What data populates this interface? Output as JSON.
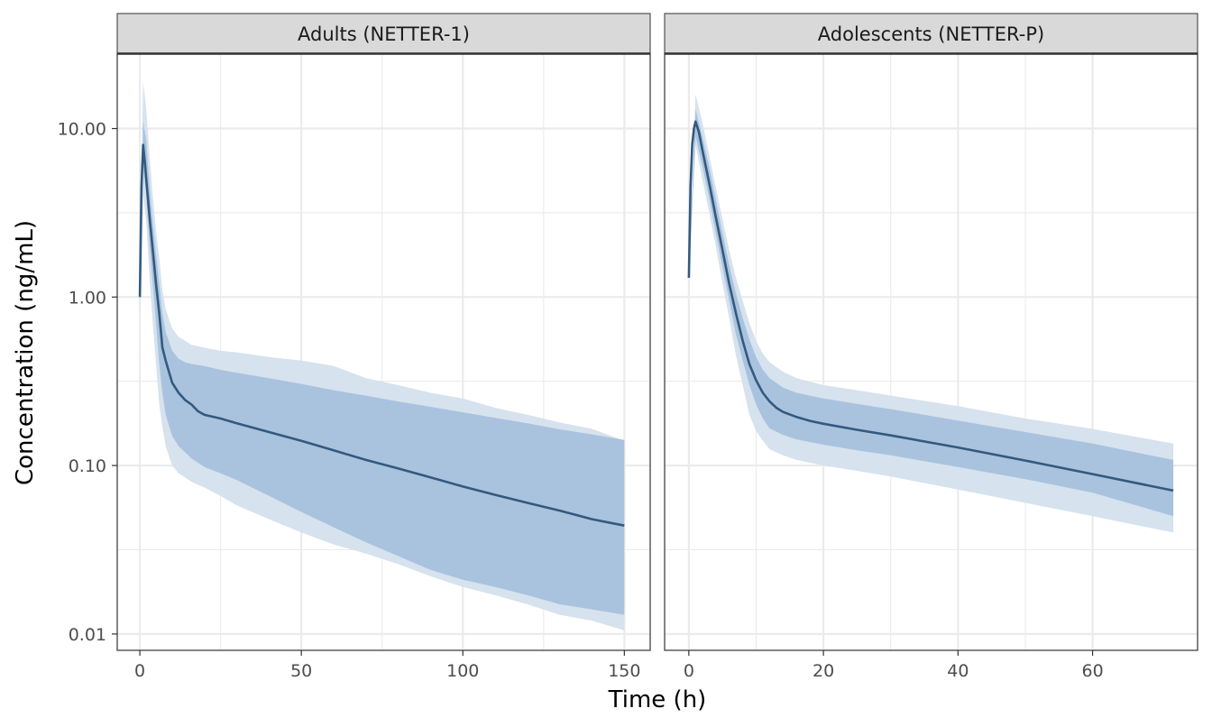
{
  "colors": {
    "line": "#34597f",
    "inner_band": "#a9c3de",
    "outer_band": "#d6e2ee",
    "strip_bg": "#d9d9d9",
    "grid": "#ebebeb",
    "panel_border": "#333333"
  },
  "chart_data": {
    "type": "line",
    "facet_layout": "1 row x 2 panels, shared y-axis",
    "xlabel": "Time (h)",
    "ylabel": "Concentration (ng/mL)",
    "y_scale": "log10",
    "ylim": [
      0.008,
      28
    ],
    "y_ticks": [
      0.01,
      0.1,
      1,
      10
    ],
    "y_tick_labels": [
      "0.01",
      "0.10",
      "1.00",
      "10.00"
    ],
    "grid": true,
    "legend": "none",
    "bands": [
      "50% interval (inner)",
      "90% interval (outer)"
    ],
    "panels": [
      {
        "strip_label": "Adults (NETTER-1)",
        "xlim": [
          -7,
          158
        ],
        "x_ticks": [
          0,
          50,
          100,
          150
        ],
        "x_tick_labels": [
          "0",
          "50",
          "100",
          "150"
        ],
        "median": {
          "x": [
            0,
            0.5,
            1,
            1.5,
            2,
            3,
            4,
            5,
            6,
            7,
            8,
            10,
            12,
            14,
            16,
            18,
            20,
            25,
            30,
            40,
            50,
            60,
            70,
            80,
            90,
            100,
            110,
            120,
            130,
            140,
            150
          ],
          "y": [
            1.0,
            4.5,
            8.0,
            6.5,
            5.0,
            3.0,
            1.9,
            1.2,
            0.8,
            0.5,
            0.42,
            0.31,
            0.27,
            0.245,
            0.23,
            0.21,
            0.2,
            0.19,
            0.178,
            0.158,
            0.14,
            0.123,
            0.108,
            0.096,
            0.085,
            0.075,
            0.067,
            0.06,
            0.054,
            0.048,
            0.044
          ]
        },
        "inner_band": {
          "x": [
            0,
            1,
            2,
            3,
            4,
            5,
            6,
            7,
            8,
            10,
            12,
            14,
            16,
            20,
            25,
            30,
            40,
            50,
            60,
            70,
            80,
            90,
            100,
            110,
            120,
            130,
            140,
            150
          ],
          "lower": [
            0.9,
            6.0,
            4.0,
            2.0,
            1.2,
            0.7,
            0.4,
            0.27,
            0.2,
            0.15,
            0.13,
            0.12,
            0.11,
            0.098,
            0.09,
            0.082,
            0.066,
            0.053,
            0.043,
            0.035,
            0.029,
            0.024,
            0.021,
            0.019,
            0.017,
            0.015,
            0.014,
            0.013
          ],
          "upper": [
            1.0,
            11.0,
            8.5,
            4.5,
            2.8,
            1.8,
            1.2,
            0.8,
            0.62,
            0.48,
            0.43,
            0.41,
            0.4,
            0.39,
            0.37,
            0.355,
            0.33,
            0.305,
            0.28,
            0.26,
            0.24,
            0.223,
            0.207,
            0.192,
            0.178,
            0.164,
            0.153,
            0.142
          ]
        },
        "outer_band": {
          "x": [
            0,
            1,
            2,
            3,
            4,
            5,
            6,
            7,
            8,
            10,
            12,
            14,
            16,
            20,
            25,
            30,
            40,
            50,
            60,
            70,
            80,
            90,
            100,
            110,
            120,
            130,
            140,
            150
          ],
          "lower": [
            0.8,
            4.0,
            2.8,
            1.3,
            0.7,
            0.4,
            0.23,
            0.17,
            0.13,
            0.1,
            0.09,
            0.085,
            0.08,
            0.074,
            0.066,
            0.058,
            0.048,
            0.04,
            0.034,
            0.03,
            0.026,
            0.022,
            0.019,
            0.017,
            0.015,
            0.013,
            0.012,
            0.0105
          ],
          "upper": [
            1.1,
            19.0,
            13.0,
            7.0,
            4.0,
            2.5,
            1.7,
            1.1,
            0.85,
            0.65,
            0.58,
            0.55,
            0.52,
            0.5,
            0.48,
            0.47,
            0.44,
            0.42,
            0.39,
            0.33,
            0.3,
            0.27,
            0.25,
            0.22,
            0.2,
            0.18,
            0.165,
            0.14
          ]
        }
      },
      {
        "strip_label": "Adolescents (NETTER-P)",
        "xlim": [
          -3.6,
          75.6
        ],
        "x_ticks": [
          0,
          20,
          40,
          60
        ],
        "x_tick_labels": [
          "0",
          "20",
          "40",
          "60"
        ],
        "median": {
          "x": [
            0,
            0.25,
            0.5,
            0.75,
            1,
            1.5,
            2,
            3,
            4,
            5,
            6,
            7,
            8,
            9,
            10,
            11,
            12,
            13,
            14,
            16,
            18,
            20,
            25,
            30,
            40,
            50,
            60,
            72
          ],
          "y": [
            1.3,
            4.5,
            8.0,
            10.0,
            11.0,
            9.5,
            7.5,
            4.8,
            3.0,
            1.9,
            1.2,
            0.8,
            0.55,
            0.4,
            0.32,
            0.27,
            0.24,
            0.22,
            0.208,
            0.194,
            0.184,
            0.177,
            0.163,
            0.151,
            0.128,
            0.107,
            0.089,
            0.071
          ]
        },
        "inner_band": {
          "x": [
            0,
            1,
            2,
            3,
            4,
            5,
            6,
            7,
            8,
            9,
            10,
            11,
            12,
            14,
            16,
            20,
            25,
            30,
            40,
            50,
            60,
            72
          ],
          "lower": [
            1.3,
            9.0,
            6.0,
            3.9,
            2.4,
            1.5,
            0.95,
            0.6,
            0.42,
            0.3,
            0.23,
            0.19,
            0.166,
            0.152,
            0.143,
            0.133,
            0.123,
            0.115,
            0.098,
            0.083,
            0.069,
            0.05
          ],
          "upper": [
            1.3,
            13.0,
            9.0,
            6.0,
            3.8,
            2.4,
            1.55,
            1.05,
            0.75,
            0.56,
            0.44,
            0.37,
            0.33,
            0.29,
            0.27,
            0.25,
            0.232,
            0.216,
            0.185,
            0.158,
            0.135,
            0.108
          ]
        },
        "outer_band": {
          "x": [
            0,
            1,
            2,
            3,
            4,
            5,
            6,
            7,
            8,
            9,
            10,
            11,
            12,
            14,
            16,
            20,
            25,
            30,
            40,
            50,
            60,
            72
          ],
          "lower": [
            1.3,
            8.0,
            5.0,
            3.2,
            2.0,
            1.2,
            0.75,
            0.45,
            0.3,
            0.2,
            0.16,
            0.14,
            0.125,
            0.115,
            0.108,
            0.1,
            0.093,
            0.086,
            0.072,
            0.06,
            0.05,
            0.04
          ],
          "upper": [
            1.3,
            16.0,
            11.0,
            7.0,
            4.5,
            2.9,
            1.9,
            1.3,
            0.95,
            0.7,
            0.55,
            0.46,
            0.41,
            0.36,
            0.33,
            0.3,
            0.28,
            0.26,
            0.225,
            0.19,
            0.165,
            0.135
          ]
        }
      }
    ]
  }
}
